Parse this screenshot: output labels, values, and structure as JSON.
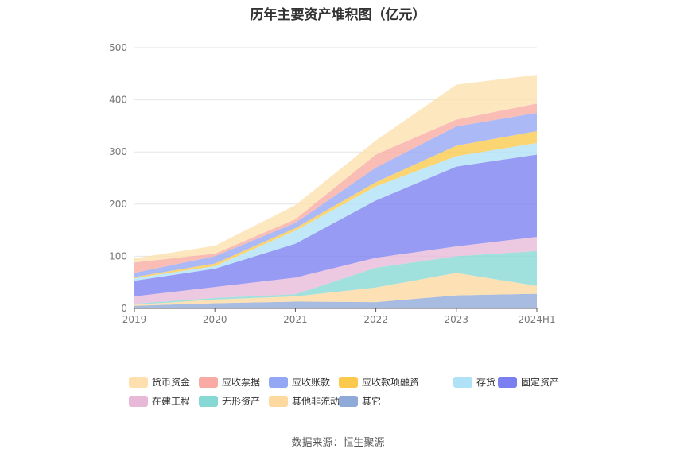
{
  "chart_data": {
    "type": "area",
    "stacked": true,
    "title": "历年主要资产堆积图（亿元）",
    "categories": [
      "2019",
      "2020",
      "2021",
      "2022",
      "2023",
      "2024H1"
    ],
    "ylim": [
      0,
      500
    ],
    "yticks": [
      0,
      100,
      200,
      300,
      400,
      500
    ],
    "grid": true,
    "legend_position": "bottom",
    "series": [
      {
        "name": "其它",
        "color": "#8fa9d9",
        "values": [
          5,
          10,
          13,
          12,
          25,
          28
        ]
      },
      {
        "name": "其他非流动资产",
        "color": "#fdd9a0",
        "values": [
          2,
          7,
          10,
          28,
          43,
          15
        ]
      },
      {
        "name": "无形资产",
        "color": "#86d8d4",
        "values": [
          2,
          3,
          4,
          38,
          32,
          67
        ]
      },
      {
        "name": "在建工程",
        "color": "#e8b8d8",
        "values": [
          14,
          21,
          32,
          19,
          19,
          27
        ]
      },
      {
        "name": "固定资产",
        "color": "#7b7ff0",
        "values": [
          30,
          35,
          65,
          110,
          153,
          158
        ]
      },
      {
        "name": "存货",
        "color": "#b0e2f7",
        "values": [
          5,
          5,
          25,
          27,
          20,
          22
        ]
      },
      {
        "name": "应收款项融资",
        "color": "#fbc94c",
        "values": [
          2,
          5,
          5,
          8,
          20,
          23
        ]
      },
      {
        "name": "应收账款",
        "color": "#93a7f5",
        "values": [
          8,
          14,
          10,
          28,
          37,
          35
        ]
      },
      {
        "name": "应收票据",
        "color": "#f9aaa2",
        "values": [
          20,
          5,
          7,
          25,
          13,
          18
        ]
      },
      {
        "name": "货币资金",
        "color": "#fde0ad",
        "values": [
          8,
          15,
          27,
          27,
          67,
          55
        ]
      }
    ],
    "legend_order": [
      "货币资金",
      "应收票据",
      "应收账款",
      "应收款项融资",
      "存货",
      "固定资产",
      "在建工程",
      "无形资产",
      "其他非流动资产",
      "其它"
    ]
  },
  "source": "数据来源：恒生聚源"
}
